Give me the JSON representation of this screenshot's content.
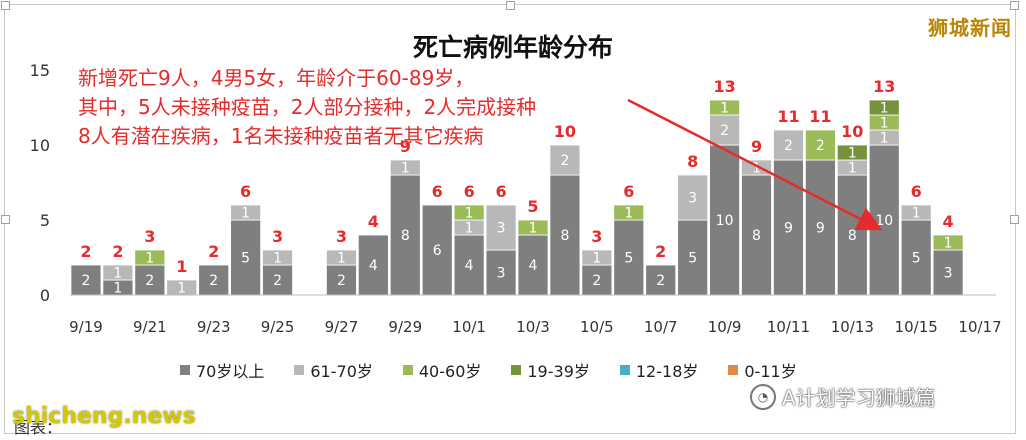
{
  "watermark_top": "狮城新闻",
  "site_watermark": "shicheng.news",
  "wechat_label": "A计划学习狮城篇",
  "caption": "图表：",
  "colors": {
    "c70plus": "#7f7f7f",
    "c61_70": "#b8b8b8",
    "c40_60": "#9bbb59",
    "c19_39": "#76923c",
    "c12_18": "#4bacc6",
    "c0_11": "#e08a44",
    "annotation": "#e52b2b",
    "total_label": "#e52b2b"
  },
  "annotations": [
    "新增死亡9人，4男5女，年龄介于60-89岁，",
    "其中，5人未接种疫苗，2人部分接种，2人完成接种",
    "8人有潜在疾病，1名未接种疫苗者无其它疾病"
  ],
  "chart_data": {
    "type": "bar",
    "stacked": true,
    "title": "死亡病例年龄分布",
    "ylim": [
      0,
      15
    ],
    "yticks": [
      "0",
      "5",
      "10",
      "15"
    ],
    "grid": false,
    "legend_position": "bottom",
    "categories": [
      "9/19",
      "9/20",
      "9/21",
      "9/22",
      "9/23",
      "9/24",
      "9/25",
      "9/26",
      "9/27",
      "9/28",
      "9/29",
      "9/30",
      "10/1",
      "10/2",
      "10/3",
      "10/4",
      "10/5",
      "10/6",
      "10/7",
      "10/8",
      "10/9",
      "10/10",
      "10/11",
      "10/12",
      "10/13",
      "10/14",
      "10/15",
      "10/16",
      "10/17"
    ],
    "xtick_labels": [
      "9/19",
      "",
      "9/21",
      "",
      "9/23",
      "",
      "9/25",
      "",
      "9/27",
      "",
      "9/29",
      "",
      "10/1",
      "",
      "10/3",
      "",
      "10/5",
      "",
      "10/7",
      "",
      "10/9",
      "",
      "10/11",
      "",
      "10/13",
      "",
      "10/15",
      "",
      "10/17"
    ],
    "series": [
      {
        "name": "70岁以上",
        "color_key": "c70plus",
        "values": [
          2,
          1,
          2,
          0,
          2,
          5,
          2,
          0,
          2,
          4,
          8,
          6,
          4,
          3,
          4,
          8,
          2,
          5,
          2,
          5,
          10,
          8,
          9,
          9,
          8,
          10,
          5,
          3,
          0
        ]
      },
      {
        "name": "61-70岁",
        "color_key": "c61_70",
        "values": [
          0,
          1,
          0,
          1,
          0,
          1,
          1,
          0,
          1,
          0,
          1,
          0,
          1,
          3,
          0,
          2,
          1,
          0,
          0,
          3,
          2,
          1,
          2,
          0,
          1,
          1,
          1,
          0,
          0
        ]
      },
      {
        "name": "40-60岁",
        "color_key": "c40_60",
        "values": [
          0,
          0,
          1,
          0,
          0,
          0,
          0,
          0,
          0,
          0,
          0,
          0,
          1,
          0,
          1,
          0,
          0,
          1,
          0,
          0,
          1,
          0,
          0,
          2,
          0,
          1,
          0,
          1,
          0
        ]
      },
      {
        "name": "19-39岁",
        "color_key": "c19_39",
        "values": [
          0,
          0,
          0,
          0,
          0,
          0,
          0,
          0,
          0,
          0,
          0,
          0,
          0,
          0,
          0,
          0,
          0,
          0,
          0,
          0,
          0,
          0,
          0,
          0,
          1,
          1,
          0,
          0,
          0
        ]
      },
      {
        "name": "12-18岁",
        "color_key": "c12_18",
        "values": [
          0,
          0,
          0,
          0,
          0,
          0,
          0,
          0,
          0,
          0,
          0,
          0,
          0,
          0,
          0,
          0,
          0,
          0,
          0,
          0,
          0,
          0,
          0,
          0,
          0,
          0,
          0,
          0,
          0
        ]
      },
      {
        "name": "0-11岁",
        "color_key": "c0_11",
        "values": [
          0,
          0,
          0,
          0,
          0,
          0,
          0,
          0,
          0,
          0,
          0,
          0,
          0,
          0,
          0,
          0,
          0,
          0,
          0,
          0,
          0,
          0,
          0,
          0,
          0,
          0,
          0,
          0,
          0
        ]
      }
    ],
    "totals": [
      2,
      2,
      3,
      1,
      2,
      6,
      3,
      0,
      3,
      4,
      9,
      6,
      6,
      6,
      5,
      10,
      3,
      6,
      2,
      8,
      13,
      9,
      11,
      11,
      10,
      13,
      6,
      4,
      0
    ]
  }
}
